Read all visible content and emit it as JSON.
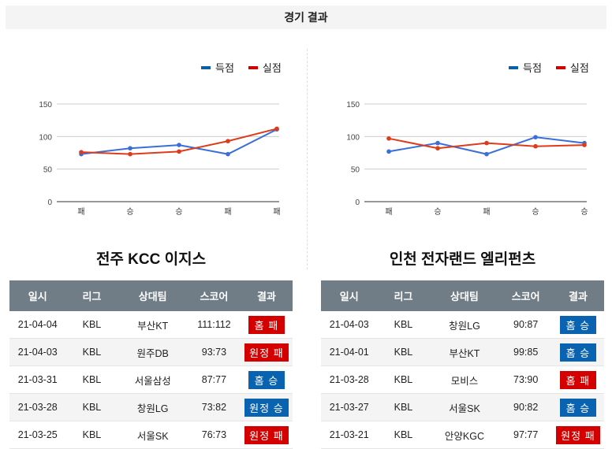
{
  "header": {
    "title": "경기 결과"
  },
  "legend": {
    "scored": "득점",
    "conceded": "실점"
  },
  "colors": {
    "scored": "#3a6fd8",
    "conceded": "#dd3b1a",
    "legend_scored": "#0b5fa5",
    "legend_conceded": "#d00000",
    "win": "#0a63b0",
    "loss": "#d40000",
    "header_bg": "#707d87"
  },
  "table_headers": [
    "일시",
    "리그",
    "상대팀",
    "스코어",
    "결과"
  ],
  "teams": [
    {
      "name": "전주 KCC 이지스",
      "chart_data": {
        "type": "line",
        "categories": [
          "패",
          "승",
          "승",
          "패",
          "패"
        ],
        "ylim": [
          0,
          150
        ],
        "yticks": [
          0,
          50,
          100,
          150
        ],
        "grid": true,
        "legend": "top-right",
        "series": [
          {
            "name": "득점",
            "values": [
              73,
              82,
              87,
              73,
              111
            ]
          },
          {
            "name": "실점",
            "values": [
              76,
              73,
              77,
              93,
              112
            ]
          }
        ]
      },
      "rows": [
        {
          "date": "21-04-04",
          "league": "KBL",
          "opponent": "부산KT",
          "score": "111:112",
          "result": "홈 패",
          "type": "loss"
        },
        {
          "date": "21-04-03",
          "league": "KBL",
          "opponent": "원주DB",
          "score": "93:73",
          "result": "원정 패",
          "type": "loss"
        },
        {
          "date": "21-03-31",
          "league": "KBL",
          "opponent": "서울삼성",
          "score": "87:77",
          "result": "홈 승",
          "type": "win"
        },
        {
          "date": "21-03-28",
          "league": "KBL",
          "opponent": "창원LG",
          "score": "73:82",
          "result": "원정 승",
          "type": "win"
        },
        {
          "date": "21-03-25",
          "league": "KBL",
          "opponent": "서울SK",
          "score": "76:73",
          "result": "원정 패",
          "type": "loss"
        }
      ]
    },
    {
      "name": "인천 전자랜드 엘리펀츠",
      "chart_data": {
        "type": "line",
        "categories": [
          "패",
          "승",
          "패",
          "승",
          "승"
        ],
        "ylim": [
          0,
          150
        ],
        "yticks": [
          0,
          50,
          100,
          150
        ],
        "grid": true,
        "legend": "top-right",
        "series": [
          {
            "name": "득점",
            "values": [
              77,
              90,
              73,
              99,
              90
            ]
          },
          {
            "name": "실점",
            "values": [
              97,
              82,
              90,
              85,
              87
            ]
          }
        ]
      },
      "rows": [
        {
          "date": "21-04-03",
          "league": "KBL",
          "opponent": "창원LG",
          "score": "90:87",
          "result": "홈 승",
          "type": "win"
        },
        {
          "date": "21-04-01",
          "league": "KBL",
          "opponent": "부산KT",
          "score": "99:85",
          "result": "홈 승",
          "type": "win"
        },
        {
          "date": "21-03-28",
          "league": "KBL",
          "opponent": "모비스",
          "score": "73:90",
          "result": "홈 패",
          "type": "loss"
        },
        {
          "date": "21-03-27",
          "league": "KBL",
          "opponent": "서울SK",
          "score": "90:82",
          "result": "홈 승",
          "type": "win"
        },
        {
          "date": "21-03-21",
          "league": "KBL",
          "opponent": "안양KGC",
          "score": "97:77",
          "result": "원정 패",
          "type": "loss"
        }
      ]
    }
  ]
}
